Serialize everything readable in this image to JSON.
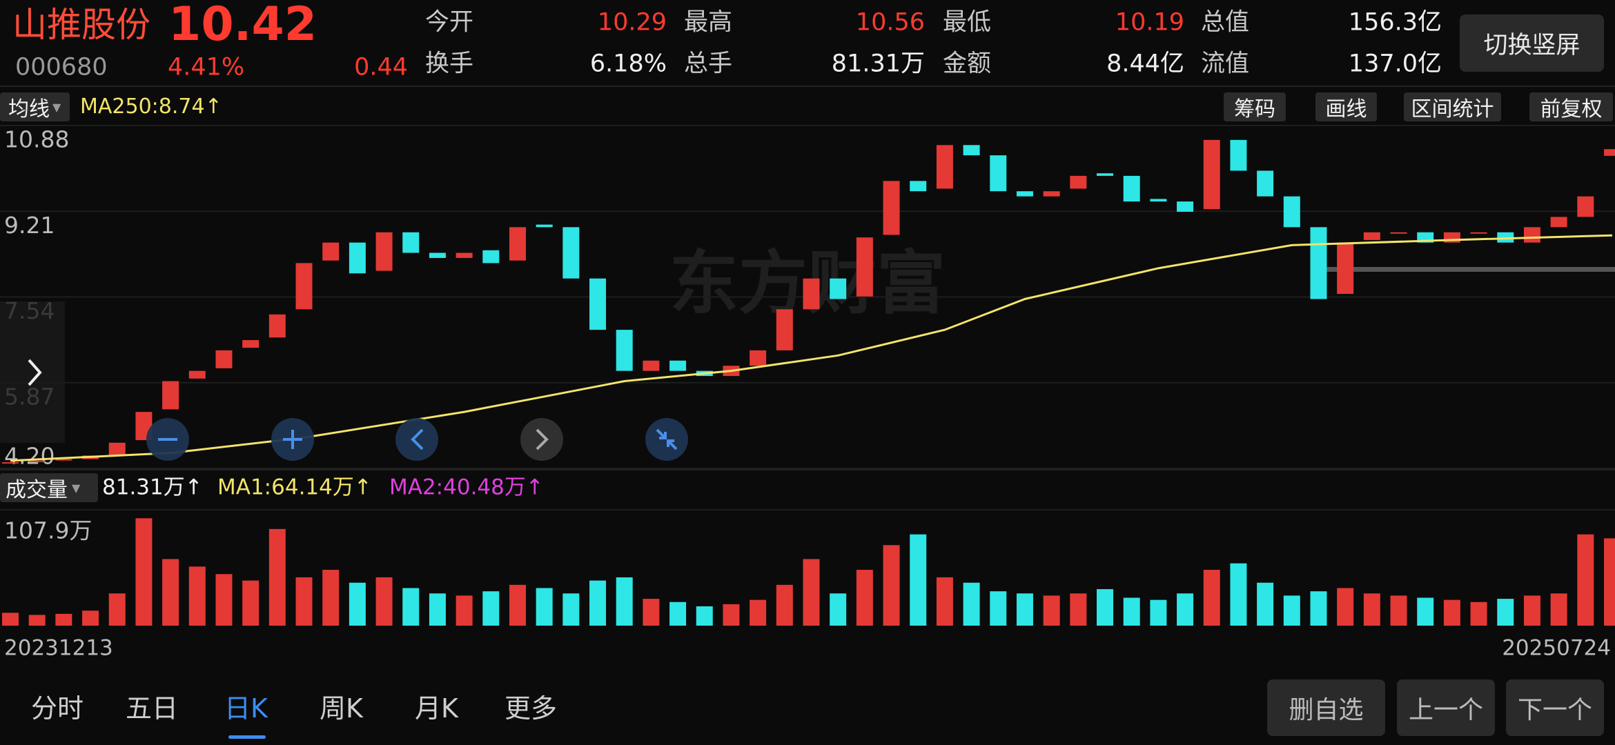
{
  "header": {
    "name": "山推股份",
    "price": "10.42",
    "code": "000680",
    "change_pct": "4.41%",
    "change": "0.44",
    "stats": [
      [
        "今开",
        "10.29"
      ],
      [
        "最高",
        "10.56"
      ],
      [
        "最低",
        "10.19"
      ],
      [
        "总值",
        "156.3亿"
      ],
      [
        "换手",
        "6.18%"
      ],
      [
        "总手",
        "81.31万"
      ],
      [
        "金额",
        "8.44亿"
      ],
      [
        "流值",
        "137.0亿"
      ]
    ],
    "button": "切换竖屏"
  },
  "toolbar": {
    "indicator": "均线",
    "buttons": [
      "筹码",
      "画线",
      "区间统计",
      "前复权"
    ]
  },
  "watermark": "东方财富",
  "chart_data": {
    "type": "candlestick",
    "categories": [
      "20231213",
      null,
      null,
      null,
      null,
      null,
      null,
      null,
      null,
      null,
      null,
      null,
      null,
      null,
      null,
      null,
      null,
      null,
      null,
      null,
      null,
      null,
      null,
      null,
      null,
      null,
      null,
      null,
      null,
      null,
      null,
      null,
      null,
      null,
      null,
      null,
      null,
      null,
      null,
      null,
      null,
      null,
      null,
      null,
      null,
      null,
      null,
      null,
      null,
      null,
      null,
      null,
      null,
      null,
      null,
      null,
      null,
      null,
      null,
      null,
      "20250724"
    ],
    "open": [
      4.3,
      4.33,
      4.36,
      4.38,
      4.45,
      4.75,
      5.35,
      5.95,
      6.15,
      6.55,
      6.75,
      7.3,
      8.25,
      8.6,
      8.05,
      8.8,
      8.4,
      8.3,
      8.45,
      8.25,
      8.95,
      8.9,
      7.9,
      6.9,
      6.1,
      6.3,
      6.1,
      6.0,
      6.2,
      6.5,
      7.3,
      7.9,
      7.55,
      8.75,
      9.8,
      9.65,
      10.5,
      10.3,
      9.6,
      9.5,
      9.65,
      9.95,
      9.9,
      9.45,
      9.4,
      9.25,
      10.6,
      10.0,
      9.5,
      8.9,
      7.6,
      8.65,
      8.8,
      8.8,
      8.6,
      8.8,
      8.8,
      8.6,
      8.9,
      9.1,
      10.29
    ],
    "close": [
      4.32,
      4.35,
      4.38,
      4.45,
      4.7,
      5.3,
      5.9,
      6.1,
      6.5,
      6.7,
      7.2,
      8.2,
      8.6,
      8.0,
      8.8,
      8.4,
      8.3,
      8.4,
      8.2,
      8.9,
      8.9,
      7.9,
      6.9,
      6.1,
      6.3,
      6.1,
      6.0,
      6.2,
      6.5,
      7.3,
      7.9,
      7.5,
      8.7,
      9.8,
      9.6,
      10.5,
      10.3,
      9.6,
      9.5,
      9.6,
      9.9,
      9.9,
      9.4,
      9.4,
      9.2,
      10.6,
      10.0,
      9.5,
      8.9,
      7.5,
      8.6,
      8.8,
      8.8,
      8.6,
      8.8,
      8.8,
      8.6,
      8.9,
      9.1,
      9.5,
      10.42
    ],
    "up_color": "#e53935",
    "down_color": "#2ee6e6",
    "ylim": [
      4.2,
      10.88
    ],
    "yticks": [
      10.88,
      9.21,
      7.54,
      5.87,
      {
        "value": 4.2,
        "label": "4.20"
      }
    ],
    "ma250": {
      "label": "MA250:8.74↑",
      "color": "#f3e46a",
      "x": [
        0,
        6,
        11,
        17,
        23,
        27,
        31,
        35,
        38,
        43,
        48,
        54,
        60
      ],
      "values": [
        4.35,
        4.5,
        4.8,
        5.3,
        5.9,
        6.1,
        6.4,
        6.9,
        7.5,
        8.1,
        8.55,
        8.65,
        8.74
      ]
    },
    "volume": {
      "title": "成交量",
      "label": "81.31万↑",
      "ma1_label": "MA1:64.14万↑",
      "ma2_label": "MA2:40.48万↑",
      "ylim": [
        0,
        107.9
      ],
      "yticks": [
        {
          "value": 107.9,
          "label": "107.9万"
        }
      ],
      "values": [
        12,
        10,
        11,
        14,
        30,
        100,
        62,
        55,
        48,
        42,
        90,
        45,
        52,
        40,
        45,
        35,
        30,
        28,
        32,
        38,
        35,
        30,
        42,
        45,
        25,
        22,
        18,
        20,
        24,
        38,
        62,
        30,
        52,
        75,
        85,
        45,
        40,
        32,
        30,
        28,
        30,
        34,
        26,
        24,
        30,
        52,
        58,
        40,
        28,
        32,
        35,
        30,
        28,
        26,
        24,
        22,
        25,
        28,
        30,
        85,
        81.31
      ]
    }
  },
  "tabs": [
    "分时",
    "五日",
    "日K",
    "周K",
    "月K",
    "更多"
  ],
  "actions": [
    "删自选",
    "上一个",
    "下一个"
  ]
}
